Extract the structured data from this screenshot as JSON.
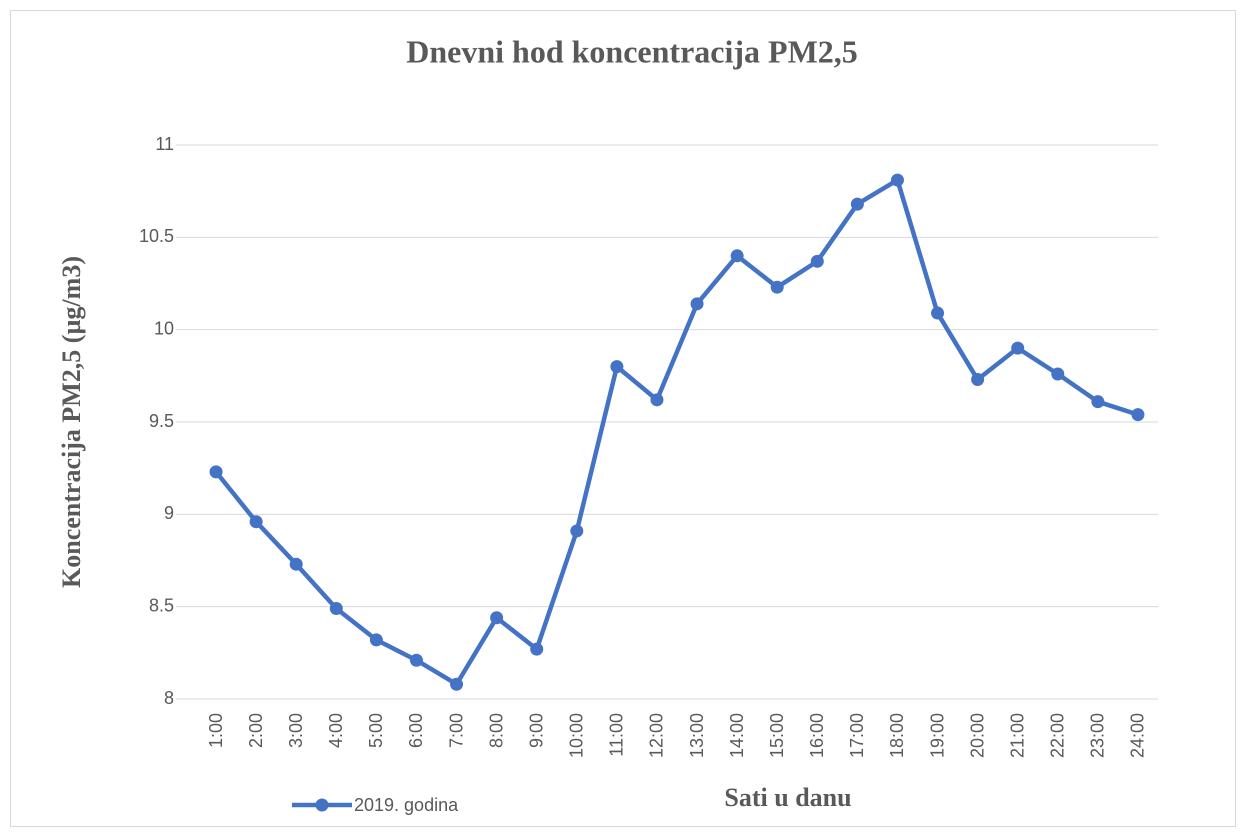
{
  "chart_data": {
    "type": "line",
    "title": "Dnevni hod koncentracija PM2,5",
    "x_label": "Sati u danu",
    "y_label": "Koncentracija PM2,5 (µg/m3)",
    "categories": [
      "1:00",
      "2:00",
      "3:00",
      "4:00",
      "5:00",
      "6:00",
      "7:00",
      "8:00",
      "9:00",
      "10:00",
      "11:00",
      "12:00",
      "13:00",
      "14:00",
      "15:00",
      "16:00",
      "17:00",
      "18:00",
      "19:00",
      "20:00",
      "21:00",
      "22:00",
      "23:00",
      "24:00"
    ],
    "series": [
      {
        "name": "2019. godina",
        "color": "#4472c4",
        "values": [
          9.23,
          8.96,
          8.73,
          8.49,
          8.32,
          8.21,
          8.08,
          8.44,
          8.27,
          8.91,
          9.8,
          9.62,
          10.14,
          10.4,
          10.23,
          10.37,
          10.68,
          10.81,
          10.09,
          9.73,
          9.9,
          9.76,
          9.61,
          9.54
        ]
      }
    ],
    "ylim": [
      8,
      11
    ],
    "yticks": [
      8,
      8.5,
      9,
      9.5,
      10,
      10.5,
      11
    ],
    "grid": true,
    "legend": "bottom-left"
  }
}
